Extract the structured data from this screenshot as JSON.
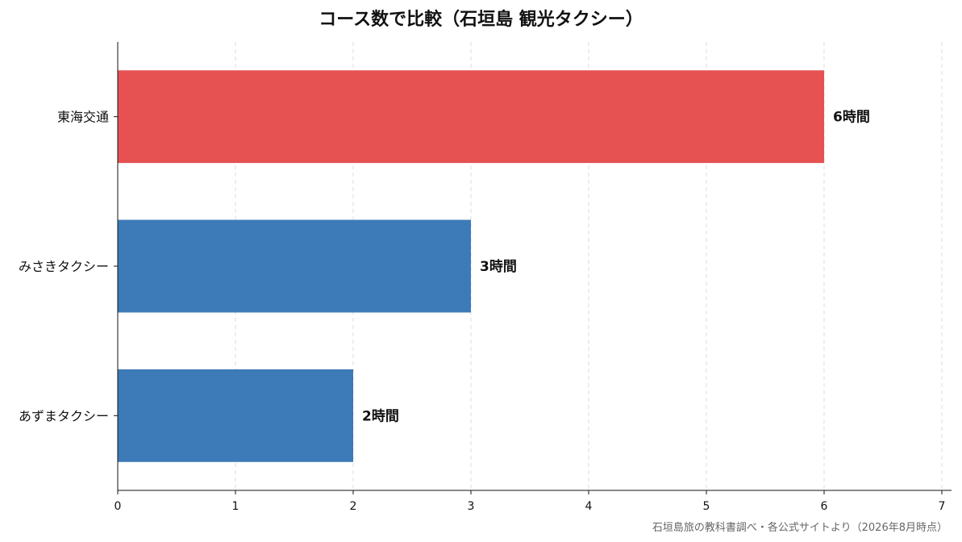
{
  "chart_data": {
    "type": "bar",
    "orientation": "horizontal",
    "title": "コース数で比較（石垣島 観光タクシー）",
    "categories": [
      "東海交通",
      "みさきタクシー",
      "あずまタクシー"
    ],
    "values": [
      6,
      3,
      2
    ],
    "value_labels": [
      "6時間",
      "3時間",
      "2時間"
    ],
    "bar_colors": [
      "#e65252",
      "#3d7ab8",
      "#3d7ab8"
    ],
    "xlim": [
      0,
      7
    ],
    "xticks": [
      0,
      1,
      2,
      3,
      4,
      5,
      6,
      7
    ],
    "xlabel": "",
    "ylabel": "",
    "grid": "x-dashed",
    "legend": "none"
  },
  "footer": {
    "source": "石垣島旅の教科書調べ・各公式サイトより（2026年8月時点）"
  }
}
